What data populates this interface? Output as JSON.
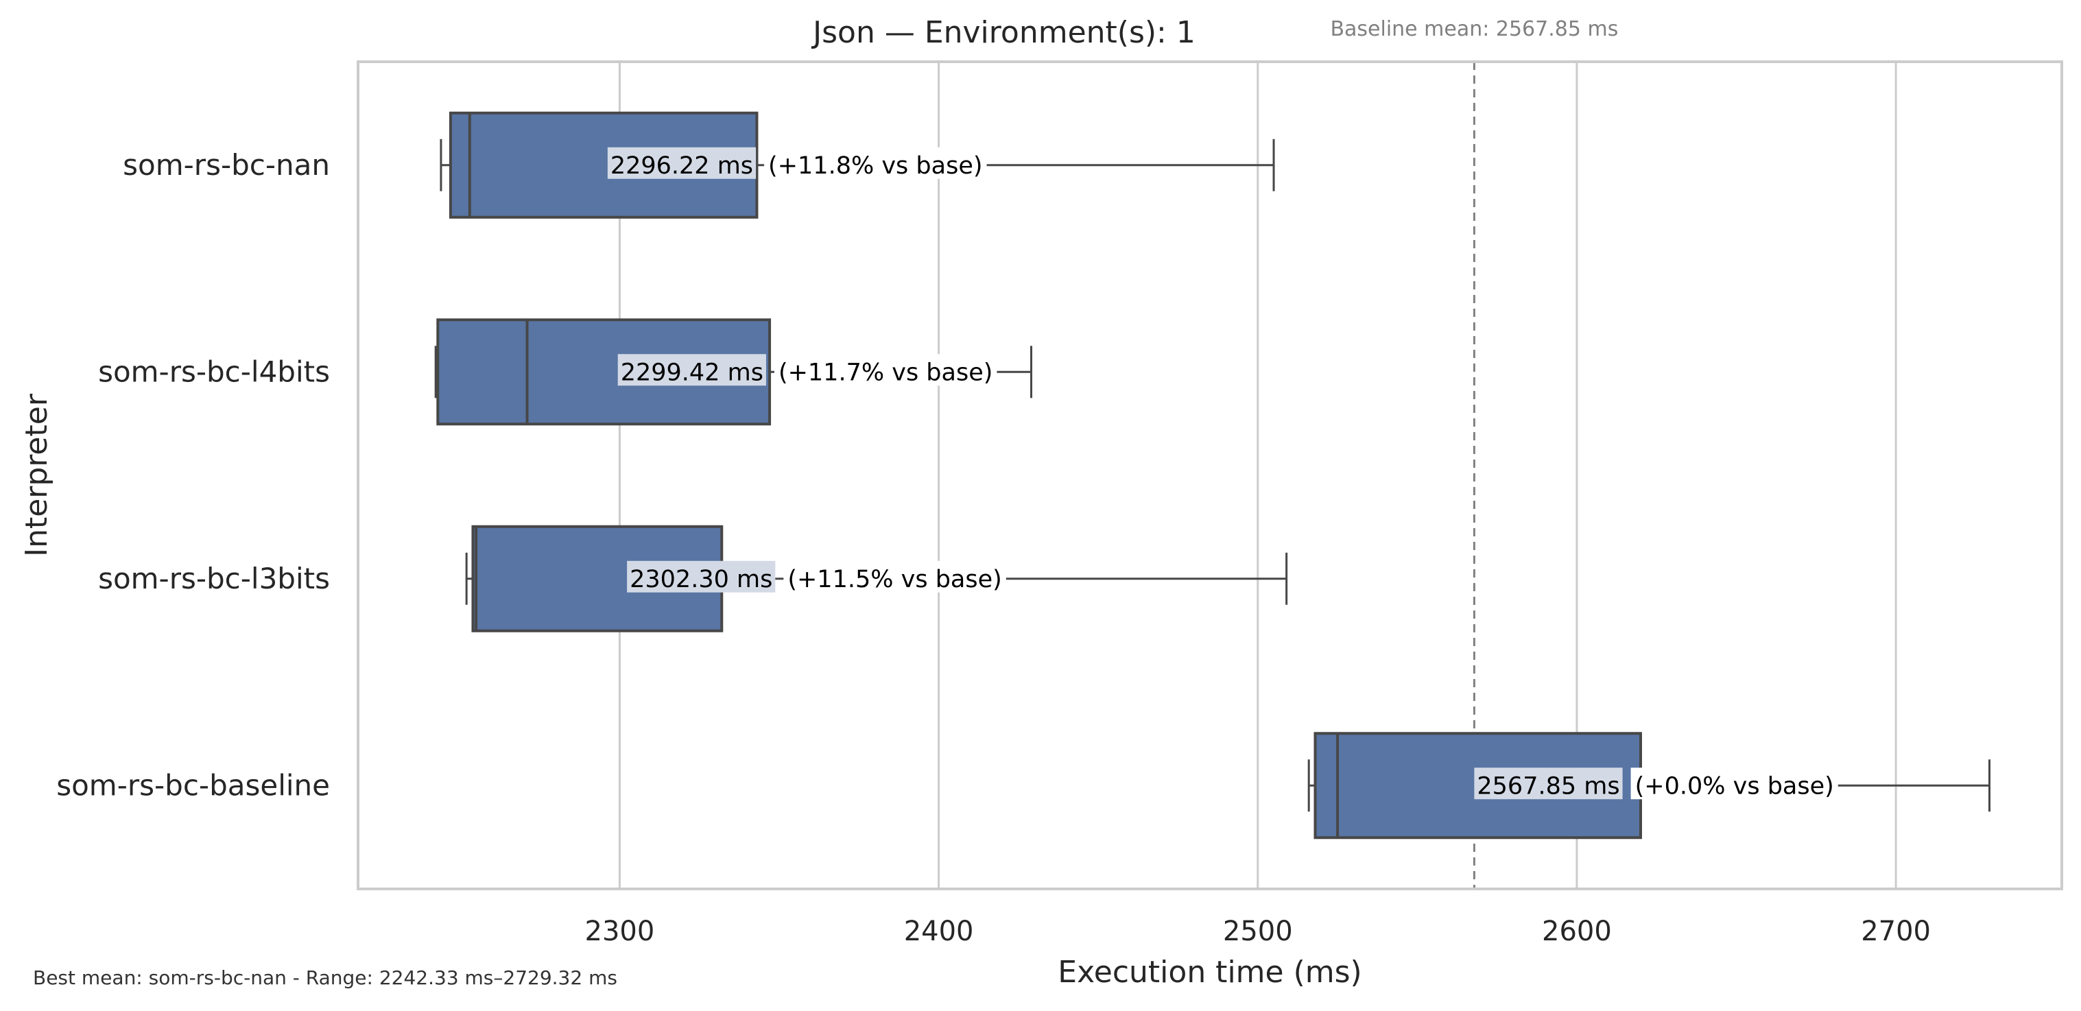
{
  "chart_data": {
    "type": "boxplot",
    "orientation": "horizontal",
    "title": "Json — Environment(s): 1",
    "xlabel": "Execution time (ms)",
    "ylabel": "Interpreter",
    "xlim": [
      2218,
      2752
    ],
    "xticks": [
      2300,
      2400,
      2500,
      2600,
      2700
    ],
    "grid": "vertical",
    "categories": [
      "som-rs-bc-nan",
      "som-rs-bc-l4bits",
      "som-rs-bc-l3bits",
      "som-rs-bc-baseline"
    ],
    "boxes": [
      {
        "name": "som-rs-bc-nan",
        "whisker_low": 2244,
        "q1": 2247,
        "median": 2253,
        "q3": 2343,
        "whisker_high": 2505,
        "mean_label": "2296.22 ms",
        "delta_label": "(+11.8% vs base)"
      },
      {
        "name": "som-rs-bc-l4bits",
        "whisker_low": 2242.33,
        "q1": 2243,
        "median": 2271,
        "q3": 2347,
        "whisker_high": 2429,
        "mean_label": "2299.42 ms",
        "delta_label": "(+11.7% vs base)"
      },
      {
        "name": "som-rs-bc-l3bits",
        "whisker_low": 2252,
        "q1": 2254,
        "median": 2255,
        "q3": 2332,
        "whisker_high": 2509,
        "mean_label": "2302.30 ms",
        "delta_label": "(+11.5% vs base)"
      },
      {
        "name": "som-rs-bc-baseline",
        "whisker_low": 2516,
        "q1": 2518,
        "median": 2525,
        "q3": 2620,
        "whisker_high": 2729.32,
        "mean_label": "2567.85 ms",
        "delta_label": "(+0.0% vs base)"
      }
    ],
    "means": [
      2296.22,
      2299.42,
      2302.3,
      2567.85
    ],
    "reference_line": {
      "value": 2567.85,
      "label": "Baseline mean: 2567.85 ms",
      "style": "dashed"
    },
    "colors": {
      "box": "#5875a4",
      "edge": "#474747",
      "grid": "#cccccc",
      "ref": "#808080",
      "label_bg": "#d3dae6"
    },
    "footer": "Best mean: som-rs-bc-nan - Range: 2242.33 ms–2729.32 ms"
  }
}
